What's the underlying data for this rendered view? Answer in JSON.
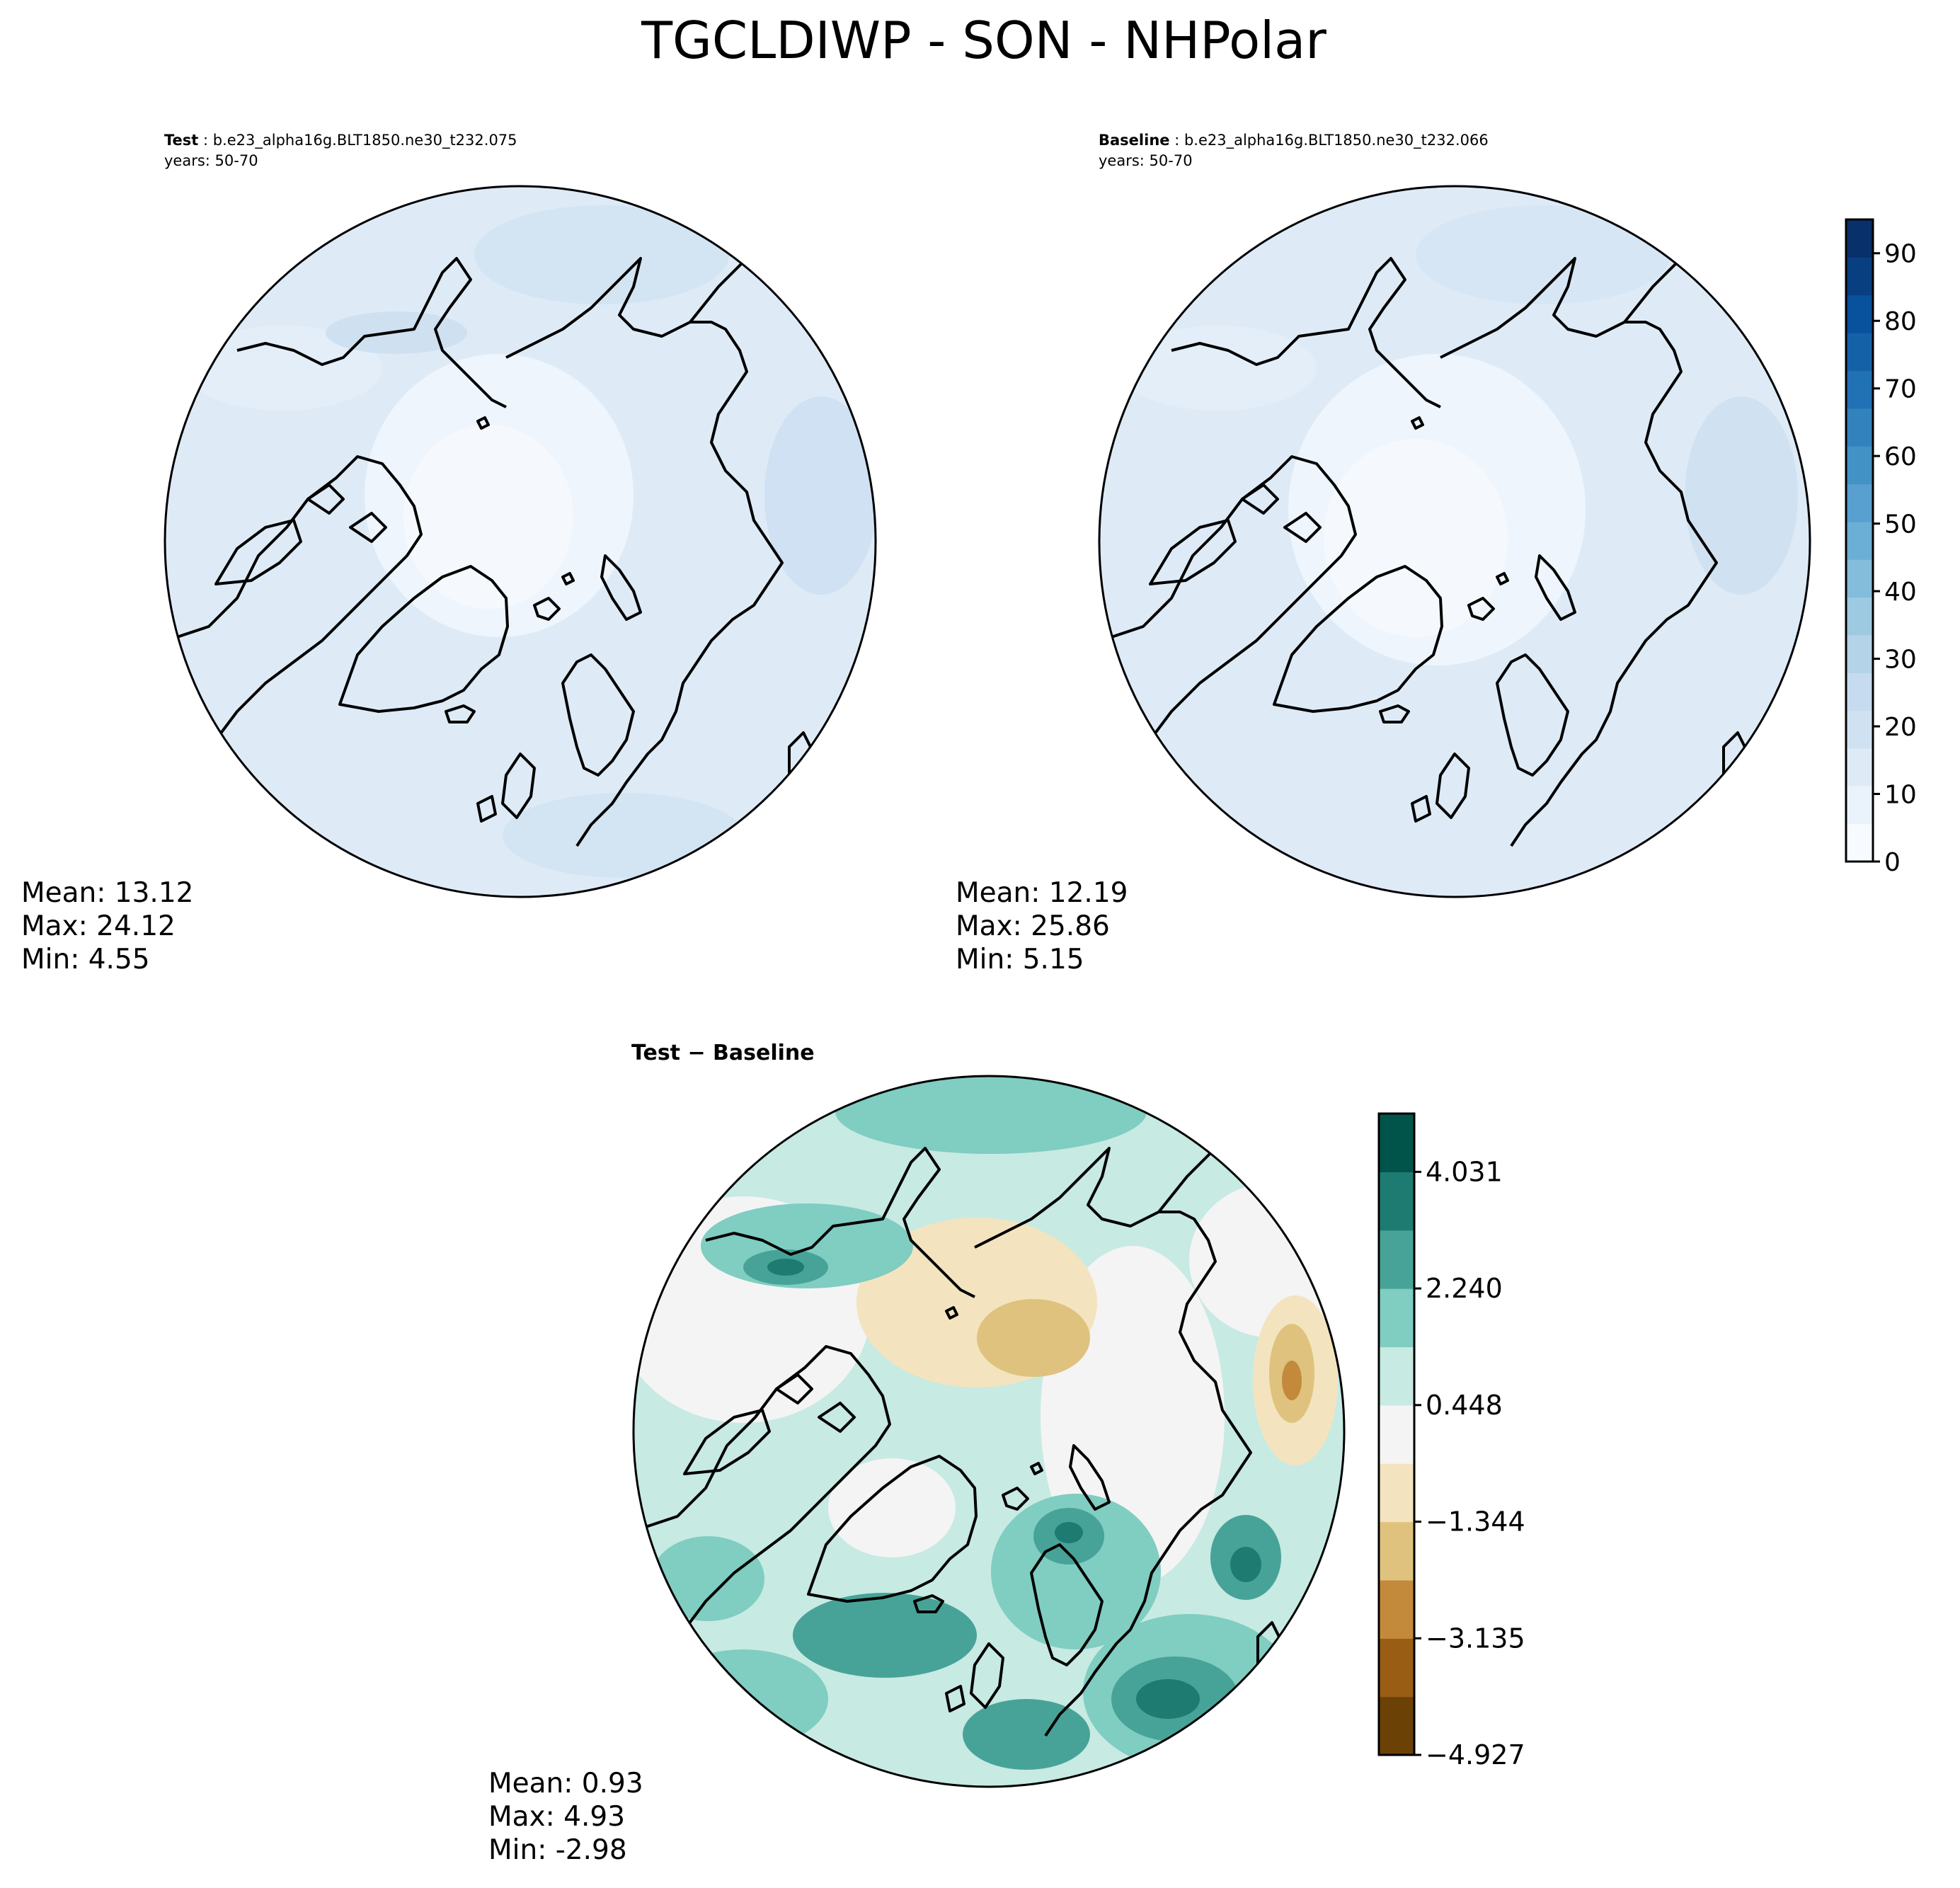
{
  "figure": {
    "title": "TGCLDIWP - SON - NHPolar"
  },
  "panels": {
    "test": {
      "label_bold": "Test",
      "label_rest": " : b.e23_alpha16g.BLT1850.ne30_t232.075",
      "years": "years: 50-70",
      "stats": {
        "mean": "Mean: 13.12",
        "max": "Max: 24.12",
        "min": "Min:  4.55"
      }
    },
    "baseline": {
      "label_bold": "Baseline",
      "label_rest": " : b.e23_alpha16g.BLT1850.ne30_t232.066",
      "years": "years: 50-70",
      "stats": {
        "mean": "Mean: 12.19",
        "max": "Max: 25.86",
        "min": "Min:  5.15"
      }
    },
    "diff": {
      "label": "Test − Baseline",
      "stats": {
        "mean": "Mean:  0.93",
        "max": "Max:  4.93",
        "min": "Min: -2.98"
      }
    }
  },
  "colorbars": {
    "main": {
      "range": [
        0,
        95
      ],
      "ticks": [
        "0",
        "10",
        "20",
        "30",
        "40",
        "50",
        "60",
        "70",
        "80",
        "90"
      ],
      "colors": [
        "#f7fbff",
        "#eaf3fb",
        "#deebf7",
        "#d0e2f2",
        "#c6dbef",
        "#b4d3e8",
        "#9ecae1",
        "#84bcdc",
        "#6baed6",
        "#57a0cf",
        "#4292c6",
        "#3282be",
        "#2171b5",
        "#1461a8",
        "#08519c",
        "#083f80",
        "#08306b"
      ]
    },
    "diff": {
      "ticks": [
        "4.031",
        "2.240",
        "0.448",
        "−1.344",
        "−3.135",
        "−4.927"
      ],
      "colors": [
        "#6b4106",
        "#9a5d14",
        "#c38a3c",
        "#dfc27d",
        "#f3e4bf",
        "#f4f4f4",
        "#c7eae3",
        "#80cdc1",
        "#47a397",
        "#1d7b72",
        "#01544a"
      ]
    }
  }
}
